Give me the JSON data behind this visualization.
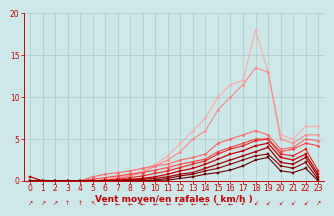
{
  "x": [
    0,
    1,
    2,
    3,
    4,
    5,
    6,
    7,
    8,
    9,
    10,
    11,
    12,
    13,
    14,
    15,
    16,
    17,
    18,
    19,
    20,
    21,
    22,
    23
  ],
  "series": [
    {
      "color": "#ffaaaa",
      "linewidth": 0.8,
      "marker": "D",
      "markersize": 1.5,
      "y": [
        0.0,
        0.0,
        0.0,
        0.0,
        0.0,
        0.0,
        0.2,
        0.4,
        0.8,
        1.2,
        2.0,
        3.0,
        4.5,
        6.0,
        7.5,
        10.0,
        11.5,
        12.0,
        18.0,
        13.0,
        5.5,
        5.0,
        6.5,
        6.5
      ]
    },
    {
      "color": "#ff8888",
      "linewidth": 0.8,
      "marker": "D",
      "markersize": 1.5,
      "y": [
        0.0,
        0.0,
        0.0,
        0.0,
        0.0,
        0.0,
        0.1,
        0.3,
        0.6,
        1.0,
        1.8,
        2.5,
        3.5,
        5.0,
        6.0,
        8.5,
        10.0,
        11.5,
        13.5,
        13.0,
        5.0,
        4.5,
        5.5,
        5.5
      ]
    },
    {
      "color": "#ff6666",
      "linewidth": 0.8,
      "marker": "D",
      "markersize": 1.5,
      "y": [
        0.0,
        0.0,
        0.0,
        0.0,
        0.0,
        0.5,
        0.8,
        1.0,
        1.2,
        1.5,
        1.8,
        2.0,
        2.5,
        2.8,
        3.2,
        4.5,
        5.0,
        5.5,
        6.0,
        5.5,
        3.8,
        4.0,
        5.0,
        4.8
      ]
    },
    {
      "color": "#ff4444",
      "linewidth": 0.8,
      "marker": "D",
      "markersize": 1.5,
      "y": [
        0.0,
        0.0,
        0.0,
        0.0,
        0.0,
        0.2,
        0.4,
        0.6,
        0.8,
        1.0,
        1.3,
        1.6,
        2.0,
        2.3,
        2.6,
        3.5,
        4.0,
        4.5,
        5.0,
        5.0,
        3.5,
        3.8,
        4.5,
        4.2
      ]
    },
    {
      "color": "#ee2222",
      "linewidth": 0.8,
      "marker": "s",
      "markersize": 1.5,
      "y": [
        0.0,
        0.0,
        0.0,
        0.0,
        0.0,
        0.0,
        0.1,
        0.2,
        0.4,
        0.6,
        0.9,
        1.2,
        1.6,
        2.0,
        2.4,
        3.2,
        3.8,
        4.2,
        4.8,
        5.0,
        3.2,
        3.0,
        3.8,
        1.2
      ]
    },
    {
      "color": "#cc0000",
      "linewidth": 0.9,
      "marker": "s",
      "markersize": 1.5,
      "y": [
        0.5,
        0.0,
        0.0,
        0.0,
        0.0,
        0.0,
        0.0,
        0.1,
        0.2,
        0.3,
        0.5,
        0.8,
        1.2,
        1.5,
        2.0,
        2.6,
        3.2,
        3.6,
        4.2,
        4.5,
        2.8,
        2.5,
        3.2,
        0.8
      ]
    },
    {
      "color": "#aa0000",
      "linewidth": 0.9,
      "marker": "s",
      "markersize": 1.5,
      "y": [
        0.0,
        0.0,
        0.0,
        0.0,
        0.0,
        0.0,
        0.0,
        0.0,
        0.1,
        0.2,
        0.3,
        0.5,
        0.8,
        1.0,
        1.5,
        2.0,
        2.5,
        3.0,
        3.5,
        4.0,
        2.2,
        2.0,
        2.8,
        0.5
      ]
    },
    {
      "color": "#880000",
      "linewidth": 0.8,
      "marker": "s",
      "markersize": 1.5,
      "y": [
        0.0,
        0.0,
        0.0,
        0.0,
        0.0,
        0.0,
        0.0,
        0.0,
        0.0,
        0.05,
        0.1,
        0.3,
        0.6,
        0.8,
        1.2,
        1.5,
        2.0,
        2.5,
        3.0,
        3.2,
        1.8,
        1.5,
        2.2,
        0.2
      ]
    },
    {
      "color": "#660000",
      "linewidth": 0.8,
      "marker": "s",
      "markersize": 1.5,
      "y": [
        0.0,
        0.0,
        0.0,
        0.0,
        0.0,
        0.0,
        0.0,
        0.0,
        0.0,
        0.0,
        0.05,
        0.1,
        0.3,
        0.5,
        0.8,
        1.0,
        1.3,
        1.8,
        2.5,
        2.8,
        1.2,
        1.0,
        1.5,
        0.0
      ]
    }
  ],
  "xlabel": "Vent moyen/en rafales ( km/h )",
  "xlim": [
    -0.5,
    23.5
  ],
  "ylim": [
    0,
    20
  ],
  "yticks": [
    0,
    5,
    10,
    15,
    20
  ],
  "xticks": [
    0,
    1,
    2,
    3,
    4,
    5,
    6,
    7,
    8,
    9,
    10,
    11,
    12,
    13,
    14,
    15,
    16,
    17,
    18,
    19,
    20,
    21,
    22,
    23
  ],
  "background_color": "#cce8e8",
  "grid_color": "#aacccc",
  "tick_color": "#cc0000",
  "label_color": "#cc0000",
  "xlabel_fontsize": 6.5,
  "tick_fontsize": 5.5,
  "arrow_dirs": [
    "NE",
    "NE",
    "NE",
    "N",
    "N",
    "NW",
    "W",
    "W",
    "W",
    "W",
    "W",
    "W",
    "W",
    "W",
    "W",
    "W",
    "W",
    "SW",
    "SW",
    "SW",
    "SW",
    "SW",
    "SW",
    "NE"
  ]
}
